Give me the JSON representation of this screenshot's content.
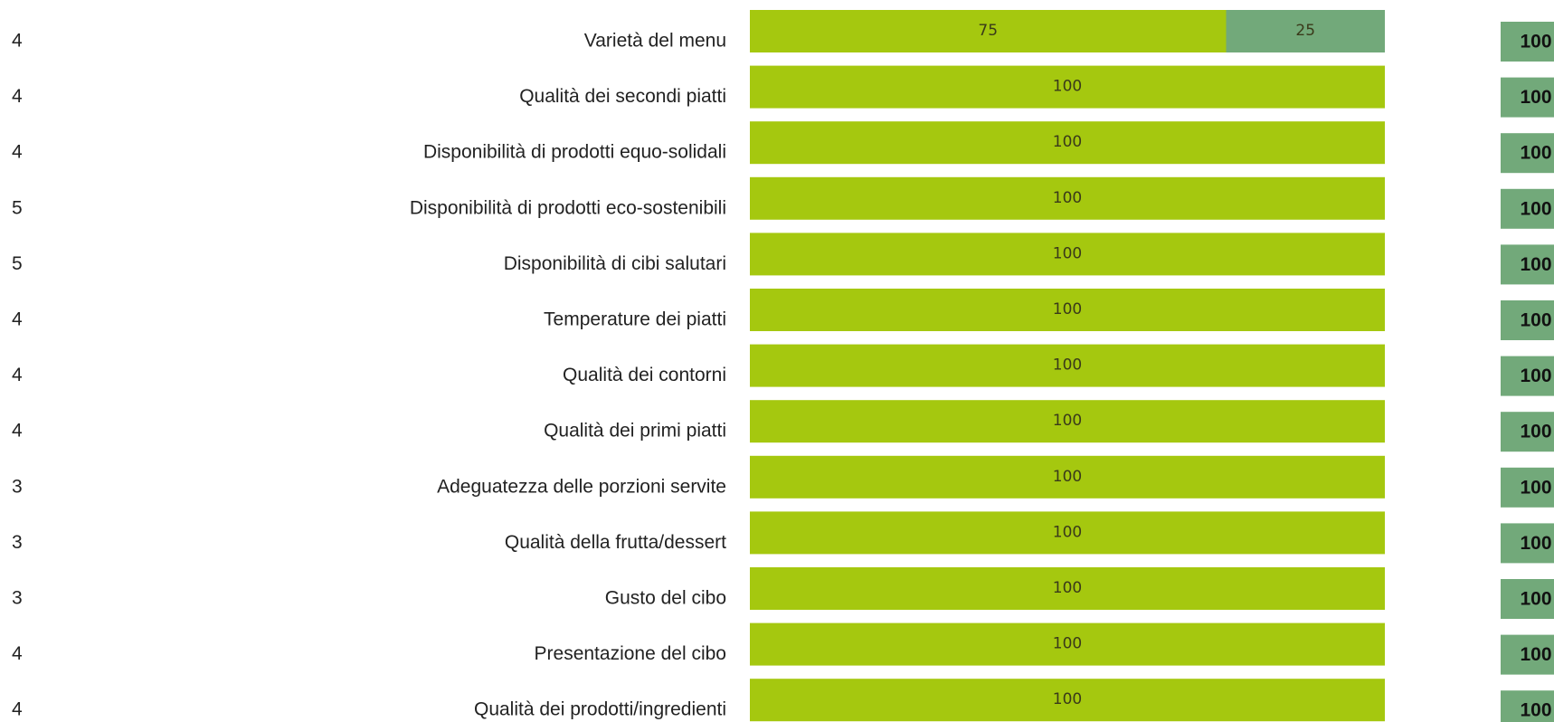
{
  "chart_data": {
    "type": "bar",
    "orientation": "horizontal",
    "stacked": true,
    "categories": [
      "Varietà del menu",
      "Qualità dei secondi piatti",
      "Disponibilità di prodotti equo-solidali",
      "Disponibilità di prodotti eco-sostenibili",
      "Disponibilità di cibi salutari",
      "Temperature dei piatti",
      "Qualità dei contorni",
      "Qualità dei primi piatti",
      "Adeguatezza delle porzioni servite",
      "Qualità della frutta/dessert",
      "Gusto del cibo",
      "Presentazione del cibo",
      "Qualità dei prodotti/ingredienti"
    ],
    "counts": [
      4,
      4,
      4,
      5,
      5,
      4,
      4,
      4,
      3,
      3,
      3,
      4,
      4
    ],
    "totals": [
      100,
      100,
      100,
      100,
      100,
      100,
      100,
      100,
      100,
      100,
      100,
      100,
      100
    ],
    "totals_color": "#72a97a",
    "series": [
      {
        "color": "#a5c80f",
        "values": [
          75,
          100,
          100,
          100,
          100,
          100,
          100,
          100,
          100,
          100,
          100,
          100,
          100
        ]
      },
      {
        "color": "#72a97a",
        "values": [
          25,
          null,
          null,
          null,
          null,
          null,
          null,
          null,
          null,
          null,
          null,
          null,
          null
        ]
      }
    ],
    "xlim": [
      0,
      100
    ]
  }
}
